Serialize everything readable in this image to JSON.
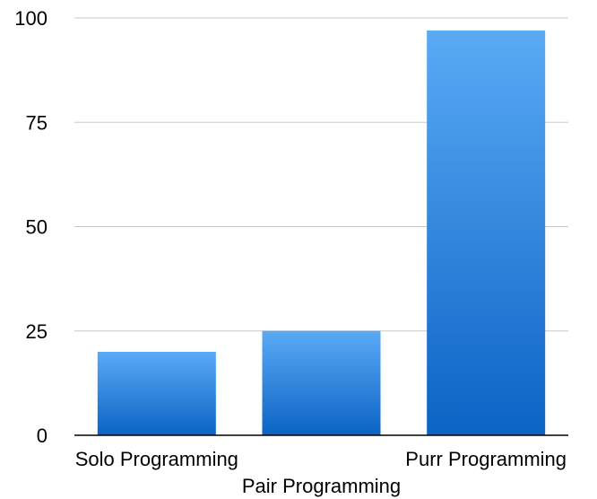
{
  "chart_data": {
    "type": "bar",
    "title": "",
    "xlabel": "",
    "ylabel": "",
    "categories": [
      "Solo Programming",
      "Pair Programming",
      "Purr Programming"
    ],
    "values": [
      20,
      25,
      97
    ],
    "ylim": [
      0,
      100
    ],
    "yticks": [
      "0",
      "25",
      "50",
      "75",
      "100"
    ],
    "grid": true,
    "legend": "none",
    "colors": {
      "bar_top": "#5aaaf5",
      "bar_bottom": "#0b63c4",
      "grid": "#c8c8c8",
      "axis": "#000000"
    }
  }
}
